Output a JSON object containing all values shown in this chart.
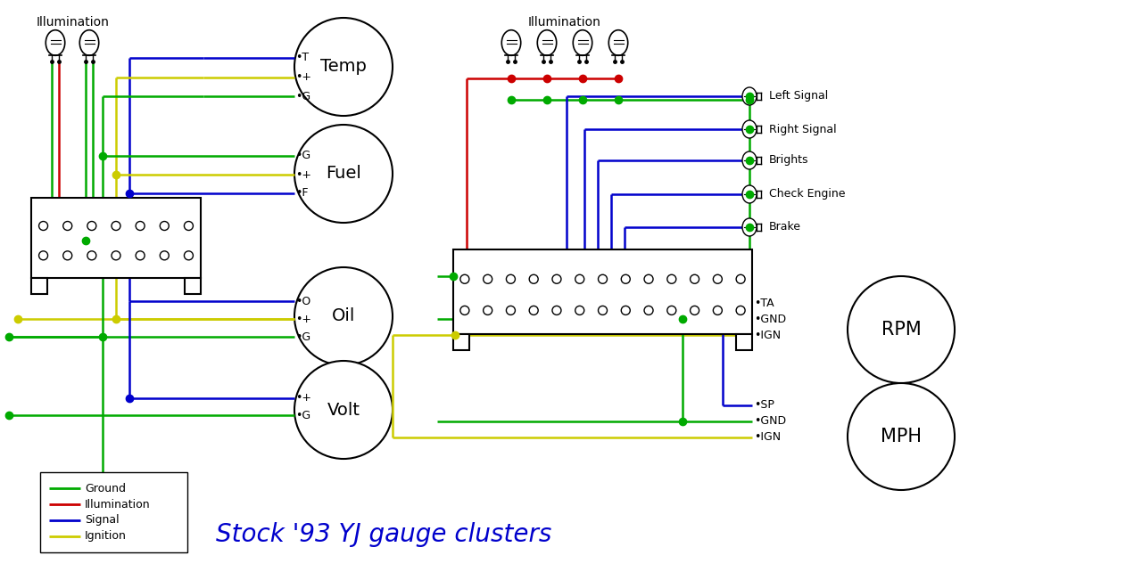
{
  "title": "Stock '93 YJ gauge clusters",
  "title_color": "#0000CC",
  "title_fontsize": 20,
  "bg_color": "#ffffff",
  "legend_items": [
    {
      "label": "Ground",
      "color": "#00AA00"
    },
    {
      "label": "Illumination",
      "color": "#CC0000"
    },
    {
      "label": "Signal",
      "color": "#0000CC"
    },
    {
      "label": "Ignition",
      "color": "#CCCC00"
    }
  ],
  "GREEN": "#00AA00",
  "RED": "#CC0000",
  "BLUE": "#0000CC",
  "YELLOW": "#CCCC00",
  "BLACK": "#000000"
}
